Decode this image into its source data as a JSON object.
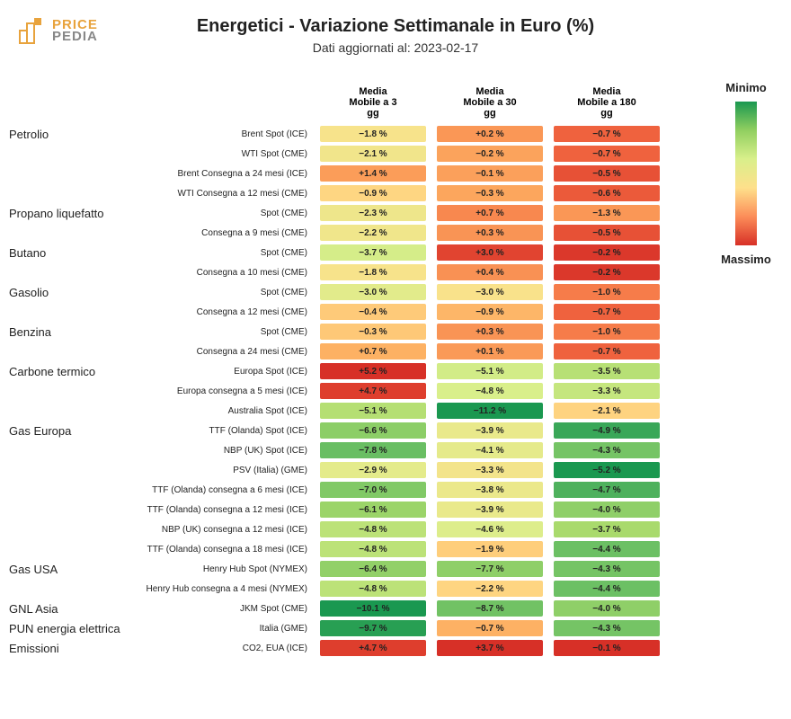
{
  "title": "Energetici - Variazione Settimanale in Euro (%)",
  "subtitle": "Dati aggiornati al: 2023-02-17",
  "logo": {
    "price": "PRICE",
    "pedia": "PEDIA"
  },
  "headers": [
    "Media\nMobile a 3\ngg",
    "Media\nMobile a 30\ngg",
    "Media\nMobile a 180\ngg"
  ],
  "legend": {
    "min": "Minimo",
    "max": "Massimo"
  },
  "color_scale": {
    "stops": [
      "#1a9850",
      "#66bd63",
      "#a6d96a",
      "#d9ef8b",
      "#fee08b",
      "#fdae61",
      "#f46d43",
      "#d73027"
    ],
    "comment": "green=minimo, red=massimo per column"
  },
  "column_ranges": [
    {
      "min": -10.1,
      "max": 5.2
    },
    {
      "min": -11.2,
      "max": 3.7
    },
    {
      "min": -5.2,
      "max": -0.1
    }
  ],
  "rows": [
    {
      "category": "Petrolio",
      "label": "Brent Spot (ICE)",
      "v": [
        -1.8,
        0.2,
        -0.7
      ]
    },
    {
      "category": "",
      "label": "WTI Spot (CME)",
      "v": [
        -2.1,
        -0.2,
        -0.7
      ]
    },
    {
      "category": "",
      "label": "Brent Consegna a 24 mesi (ICE)",
      "v": [
        1.4,
        -0.1,
        -0.5
      ]
    },
    {
      "category": "",
      "label": "WTI Consegna a 12 mesi (CME)",
      "v": [
        -0.9,
        -0.3,
        -0.6
      ]
    },
    {
      "category": "Propano liquefatto",
      "label": "Spot (CME)",
      "v": [
        -2.3,
        0.7,
        -1.3
      ]
    },
    {
      "category": "",
      "label": "Consegna a 9 mesi (CME)",
      "v": [
        -2.2,
        0.3,
        -0.5
      ]
    },
    {
      "category": "Butano",
      "label": "Spot (CME)",
      "v": [
        -3.7,
        3.0,
        -0.2
      ]
    },
    {
      "category": "",
      "label": "Consegna a 10 mesi (CME)",
      "v": [
        -1.8,
        0.4,
        -0.2
      ]
    },
    {
      "category": "Gasolio",
      "label": "Spot (CME)",
      "v": [
        -3.0,
        -3.0,
        -1.0
      ]
    },
    {
      "category": "",
      "label": "Consegna a 12 mesi (CME)",
      "v": [
        -0.4,
        -0.9,
        -0.7
      ]
    },
    {
      "category": "Benzina",
      "label": "Spot (CME)",
      "v": [
        -0.3,
        0.3,
        -1.0
      ]
    },
    {
      "category": "",
      "label": "Consegna a 24 mesi (CME)",
      "v": [
        0.7,
        0.1,
        -0.7
      ]
    },
    {
      "category": "Carbone termico",
      "label": "Europa Spot (ICE)",
      "v": [
        5.2,
        -5.1,
        -3.5
      ]
    },
    {
      "category": "",
      "label": "Europa consegna a 5 mesi (ICE)",
      "v": [
        4.7,
        -4.8,
        -3.3
      ]
    },
    {
      "category": "",
      "label": "Australia Spot (ICE)",
      "v": [
        -5.1,
        -11.2,
        -2.1
      ]
    },
    {
      "category": "Gas Europa",
      "label": "TTF (Olanda) Spot (ICE)",
      "v": [
        -6.6,
        -3.9,
        -4.9
      ]
    },
    {
      "category": "",
      "label": "NBP (UK) Spot (ICE)",
      "v": [
        -7.8,
        -4.1,
        -4.3
      ]
    },
    {
      "category": "",
      "label": "PSV (Italia) (GME)",
      "v": [
        -2.9,
        -3.3,
        -5.2
      ]
    },
    {
      "category": "",
      "label": "TTF (Olanda) consegna a 6 mesi (ICE)",
      "v": [
        -7.0,
        -3.8,
        -4.7
      ]
    },
    {
      "category": "",
      "label": "TTF (Olanda) consegna a 12 mesi (ICE)",
      "v": [
        -6.1,
        -3.9,
        -4.0
      ]
    },
    {
      "category": "",
      "label": "NBP (UK) consegna a 12 mesi (ICE)",
      "v": [
        -4.8,
        -4.6,
        -3.7
      ]
    },
    {
      "category": "",
      "label": "TTF (Olanda) consegna a 18 mesi (ICE)",
      "v": [
        -4.8,
        -1.9,
        -4.4
      ]
    },
    {
      "category": "Gas USA",
      "label": "Henry Hub Spot (NYMEX)",
      "v": [
        -6.4,
        -7.7,
        -4.3
      ]
    },
    {
      "category": "",
      "label": "Henry Hub consegna a 4 mesi (NYMEX)",
      "v": [
        -4.8,
        -2.2,
        -4.4
      ]
    },
    {
      "category": "GNL Asia",
      "label": "JKM Spot (CME)",
      "v": [
        -10.1,
        -8.7,
        -4.0
      ]
    },
    {
      "category": "PUN energia elettrica",
      "label": "Italia (GME)",
      "v": [
        -9.7,
        -0.7,
        -4.3
      ]
    },
    {
      "category": "Emissioni",
      "label": "CO2, EUA (ICE)",
      "v": [
        4.7,
        3.7,
        -0.1
      ]
    }
  ],
  "fonts": {
    "title_size": 20,
    "subtitle_size": 14,
    "header_size": 11,
    "category_size": 13,
    "rowlabel_size": 10,
    "cell_size": 10,
    "legend_size": 13
  }
}
